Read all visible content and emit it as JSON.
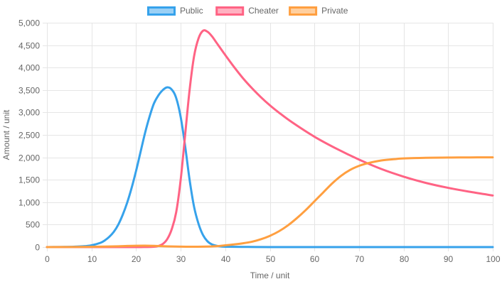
{
  "chart_data": {
    "type": "line",
    "title": "",
    "xlabel": "Time / unit",
    "ylabel": "Amount / unit",
    "xlim": [
      0,
      100
    ],
    "ylim": [
      0,
      5000
    ],
    "x_ticks": [
      "0",
      "10",
      "20",
      "30",
      "40",
      "50",
      "60",
      "70",
      "80",
      "90",
      "100"
    ],
    "y_ticks": [
      "0",
      "500",
      "1,000",
      "1,500",
      "2,000",
      "2,500",
      "3,000",
      "3,500",
      "4,000",
      "4,500",
      "5,000"
    ],
    "grid": true,
    "legend_position": "top-center",
    "series": [
      {
        "name": "Public",
        "color": "#36a2eb",
        "fill": "#9ad0f5",
        "points": [
          [
            0,
            0
          ],
          [
            2,
            2
          ],
          [
            4,
            4
          ],
          [
            6,
            8
          ],
          [
            8,
            17
          ],
          [
            10,
            40
          ],
          [
            12,
            95
          ],
          [
            13,
            150
          ],
          [
            14,
            230
          ],
          [
            15,
            340
          ],
          [
            16,
            500
          ],
          [
            17,
            720
          ],
          [
            18,
            990
          ],
          [
            19,
            1320
          ],
          [
            20,
            1700
          ],
          [
            21,
            2120
          ],
          [
            22,
            2540
          ],
          [
            23,
            2900
          ],
          [
            24,
            3200
          ],
          [
            25,
            3380
          ],
          [
            26,
            3500
          ],
          [
            27,
            3560
          ],
          [
            28,
            3510
          ],
          [
            29,
            3320
          ],
          [
            30,
            2900
          ],
          [
            31,
            2250
          ],
          [
            32,
            1500
          ],
          [
            33,
            900
          ],
          [
            34,
            520
          ],
          [
            35,
            270
          ],
          [
            36,
            130
          ],
          [
            37,
            60
          ],
          [
            38,
            30
          ],
          [
            39,
            15
          ],
          [
            40,
            8
          ],
          [
            45,
            3
          ],
          [
            50,
            1
          ],
          [
            60,
            0
          ],
          [
            70,
            0
          ],
          [
            80,
            0
          ],
          [
            90,
            0
          ],
          [
            100,
            0
          ]
        ]
      },
      {
        "name": "Cheater",
        "color": "#ff6384",
        "fill": "#ffb1c1",
        "points": [
          [
            0,
            0
          ],
          [
            5,
            0
          ],
          [
            10,
            0
          ],
          [
            15,
            0
          ],
          [
            20,
            0
          ],
          [
            22,
            2
          ],
          [
            24,
            8
          ],
          [
            25,
            25
          ],
          [
            26,
            70
          ],
          [
            27,
            180
          ],
          [
            28,
            400
          ],
          [
            29,
            780
          ],
          [
            30,
            1500
          ],
          [
            31,
            2500
          ],
          [
            32,
            3500
          ],
          [
            33,
            4250
          ],
          [
            34,
            4650
          ],
          [
            35,
            4820
          ],
          [
            36,
            4800
          ],
          [
            37,
            4700
          ],
          [
            38,
            4560
          ],
          [
            40,
            4280
          ],
          [
            42,
            4010
          ],
          [
            44,
            3760
          ],
          [
            46,
            3540
          ],
          [
            48,
            3340
          ],
          [
            50,
            3160
          ],
          [
            52,
            3000
          ],
          [
            55,
            2780
          ],
          [
            60,
            2460
          ],
          [
            65,
            2190
          ],
          [
            70,
            1950
          ],
          [
            75,
            1740
          ],
          [
            80,
            1570
          ],
          [
            85,
            1430
          ],
          [
            90,
            1320
          ],
          [
            95,
            1230
          ],
          [
            100,
            1150
          ]
        ]
      },
      {
        "name": "Private",
        "color": "#ff9f40",
        "fill": "#ffcf9f",
        "points": [
          [
            0,
            0
          ],
          [
            5,
            2
          ],
          [
            10,
            6
          ],
          [
            15,
            15
          ],
          [
            18,
            25
          ],
          [
            20,
            30
          ],
          [
            22,
            32
          ],
          [
            24,
            28
          ],
          [
            26,
            20
          ],
          [
            28,
            14
          ],
          [
            30,
            10
          ],
          [
            32,
            8
          ],
          [
            35,
            10
          ],
          [
            38,
            20
          ],
          [
            40,
            40
          ],
          [
            42,
            60
          ],
          [
            44,
            85
          ],
          [
            46,
            120
          ],
          [
            48,
            175
          ],
          [
            50,
            250
          ],
          [
            52,
            350
          ],
          [
            54,
            480
          ],
          [
            56,
            640
          ],
          [
            58,
            820
          ],
          [
            60,
            1020
          ],
          [
            62,
            1220
          ],
          [
            64,
            1420
          ],
          [
            66,
            1590
          ],
          [
            68,
            1720
          ],
          [
            70,
            1810
          ],
          [
            72,
            1870
          ],
          [
            75,
            1930
          ],
          [
            78,
            1960
          ],
          [
            80,
            1975
          ],
          [
            85,
            1990
          ],
          [
            90,
            1995
          ],
          [
            95,
            1998
          ],
          [
            100,
            2000
          ]
        ]
      }
    ]
  }
}
